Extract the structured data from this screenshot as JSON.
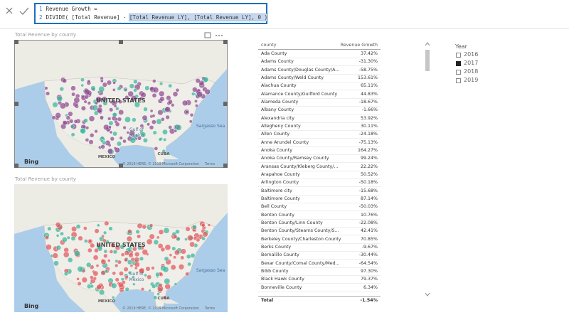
{
  "formula_bar": {
    "lines": [
      {
        "number": "1",
        "parts": [
          {
            "text": "Revenue Growth =",
            "highlighted": false
          }
        ]
      },
      {
        "number": "2",
        "parts": [
          {
            "text": "DIVIDE( [Total Revenue] - ",
            "highlighted": false
          },
          {
            "text": "[Total Revenue LY], [Total Revenue LY], 0 )",
            "highlighted": true
          }
        ]
      }
    ]
  },
  "maps": [
    {
      "title": "Total Revenue by county",
      "selected": true,
      "dot_colors": [
        "#8e4a8f",
        "#3cb49a"
      ],
      "labels": [
        "UNITED STATES",
        "Gulf of",
        "Mexico",
        "MEXICO",
        "CUBA",
        "Sargasso Sea",
        "Bing",
        "© 2019 HERE, © 2019 Microsoft Corporation",
        "Terms"
      ]
    },
    {
      "title": "Total Revenue by county",
      "selected": false,
      "dot_colors": [
        "#e0575b",
        "#3cb49a"
      ],
      "labels": [
        "UNITED STATES",
        "Gulf of",
        "Mexico",
        "MEXICO",
        "CUBA",
        "Sargasso Sea",
        "Bing",
        "© 2019 HERE, © 2019 Microsoft Corporation",
        "Terms"
      ]
    }
  ],
  "table": {
    "columns": [
      "county",
      "Revenue Growth"
    ],
    "rows": [
      [
        "Ada County",
        "37.42%"
      ],
      [
        "Adams County",
        "-31.30%"
      ],
      [
        "Adams County/Douglas County/A...",
        "-58.75%"
      ],
      [
        "Adams County/Weld County",
        "153.61%"
      ],
      [
        "Alachua County",
        "65.11%"
      ],
      [
        "Alamance County/Guilford County",
        "44.83%"
      ],
      [
        "Alameda County",
        "-18.67%"
      ],
      [
        "Albany County",
        "-1.66%"
      ],
      [
        "Alexandria city",
        "53.92%"
      ],
      [
        "Allegheny County",
        "30.11%"
      ],
      [
        "Allen County",
        "-24.18%"
      ],
      [
        "Anne Arundel County",
        "-75.13%"
      ],
      [
        "Anoka County",
        "164.27%"
      ],
      [
        "Anoka County/Ramsey County",
        "99.24%"
      ],
      [
        "Aransas County/Kleberg County/...",
        "22.22%"
      ],
      [
        "Arapahoe County",
        "50.52%"
      ],
      [
        "Arlington County",
        "-50.18%"
      ],
      [
        "Baltimore city",
        "-15.68%"
      ],
      [
        "Baltimore County",
        "87.14%"
      ],
      [
        "Bell County",
        "-50.03%"
      ],
      [
        "Benton County",
        "10.76%"
      ],
      [
        "Benton County/Linn County",
        "-22.08%"
      ],
      [
        "Benton County/Stearns County/S...",
        "42.41%"
      ],
      [
        "Berkeley County/Charleston County",
        "70.85%"
      ],
      [
        "Berks County",
        "-9.67%"
      ],
      [
        "Bernalillo County",
        "-30.44%"
      ],
      [
        "Bexar County/Comal County/Med...",
        "-64.54%"
      ],
      [
        "Bibb County",
        "97.30%"
      ],
      [
        "Black Hawk County",
        "79.37%"
      ],
      [
        "Bonneville County",
        "6.34%"
      ]
    ],
    "total": [
      "Total",
      "-1.54%"
    ]
  },
  "slicer": {
    "title": "Year",
    "items": [
      {
        "label": "2016",
        "checked": false
      },
      {
        "label": "2017",
        "checked": true
      },
      {
        "label": "2018",
        "checked": false
      },
      {
        "label": "2019",
        "checked": false
      }
    ]
  }
}
